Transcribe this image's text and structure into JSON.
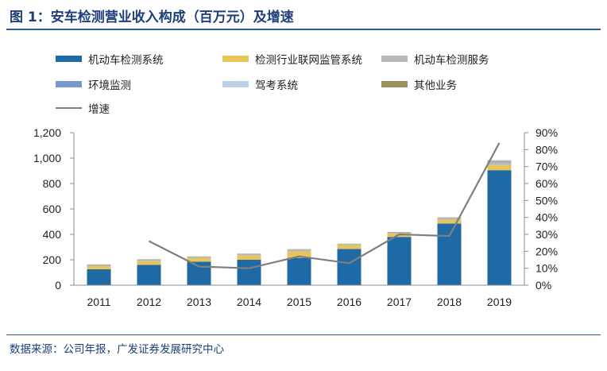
{
  "title": "图 1：安车检测营业收入构成（百万元）及增速",
  "source": "数据来源：公司年报，广发证券发展研究中心",
  "legend": {
    "row1": [
      "机动车检测系统",
      "检测行业联网监管系统",
      "机动车检测服务"
    ],
    "row2": [
      "环境监测",
      "驾考系统",
      "其他业务"
    ],
    "row3": [
      "增速"
    ]
  },
  "colors": {
    "机动车检测系统": "#1f6aa5",
    "检测行业联网监管系统": "#e8c559",
    "机动车检测服务": "#b8b8b8",
    "环境监测": "#7b96c8",
    "驾考系统": "#bcd0e6",
    "其他业务": "#9a9160",
    "增速": "#7f7f7f",
    "title": "#1f3f7a"
  },
  "chart_data": {
    "type": "bar",
    "stacked": true,
    "categories": [
      "2011",
      "2012",
      "2013",
      "2014",
      "2015",
      "2016",
      "2017",
      "2018",
      "2019"
    ],
    "series": [
      {
        "name": "机动车检测系统",
        "values": [
          125,
          160,
          185,
          200,
          215,
          285,
          380,
          485,
          905
        ]
      },
      {
        "name": "检测行业联网监管系统",
        "values": [
          25,
          30,
          28,
          35,
          50,
          30,
          25,
          30,
          40
        ]
      },
      {
        "name": "机动车检测服务",
        "values": [
          10,
          10,
          10,
          10,
          15,
          8,
          10,
          15,
          25
        ]
      },
      {
        "name": "环境监测",
        "values": [
          0,
          0,
          0,
          0,
          0,
          0,
          0,
          0,
          5
        ]
      },
      {
        "name": "驾考系统",
        "values": [
          0,
          0,
          0,
          0,
          0,
          0,
          0,
          0,
          5
        ]
      },
      {
        "name": "其他业务",
        "values": [
          3,
          3,
          3,
          3,
          3,
          3,
          3,
          3,
          3
        ]
      }
    ],
    "line": {
      "name": "增速",
      "axis": "right",
      "unit": "%",
      "values": [
        null,
        26,
        11,
        10,
        17,
        13,
        30,
        29,
        84
      ]
    },
    "ylim": [
      0,
      1200
    ],
    "yticks": [
      "0",
      "200",
      "400",
      "600",
      "800",
      "1,000",
      "1,200"
    ],
    "y2lim": [
      0,
      90
    ],
    "y2ticks": [
      "0%",
      "10%",
      "20%",
      "30%",
      "40%",
      "50%",
      "60%",
      "70%",
      "80%",
      "90%"
    ],
    "legend_position": "top",
    "grid": false
  }
}
